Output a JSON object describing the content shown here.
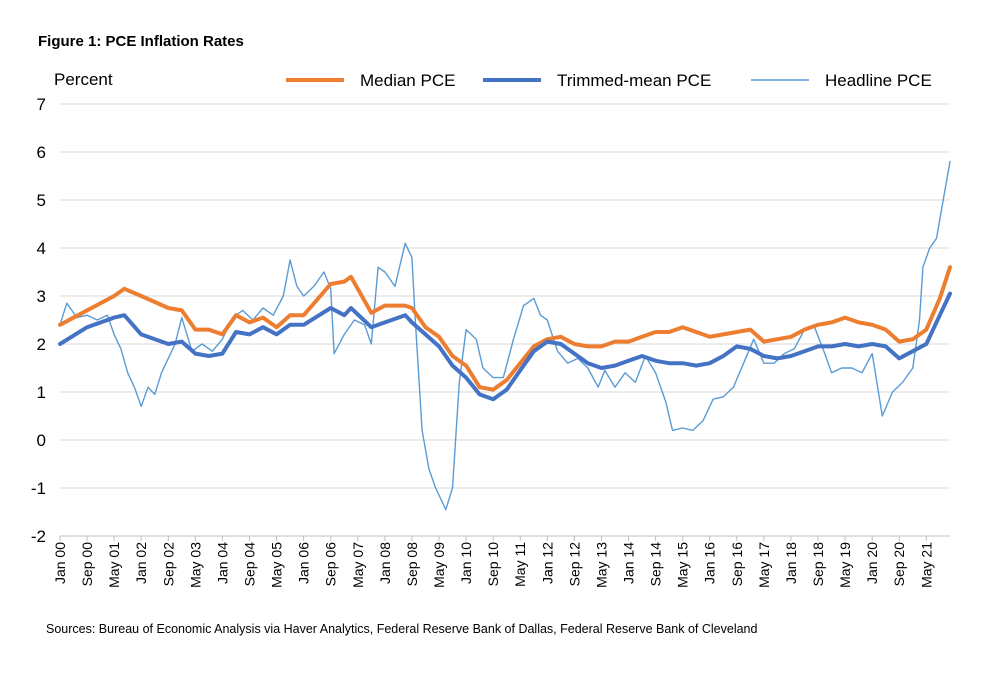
{
  "figure": {
    "title": "Figure 1: PCE Inflation Rates",
    "sources": "Sources: Bureau of Economic Analysis via Haver Analytics, Federal Reserve Bank of Dallas, Federal Reserve Bank of Cleveland"
  },
  "chart_data": {
    "type": "line",
    "title": "Figure 1: PCE Inflation Rates",
    "ylabel": "Percent",
    "xlabel": "",
    "ylim": [
      -2,
      7
    ],
    "yticks": [
      -2,
      -1,
      0,
      1,
      2,
      3,
      4,
      5,
      6,
      7
    ],
    "grid": "horizontal",
    "legend": "top",
    "x_start": "Jan 00",
    "x_end": "Dec 21",
    "xticks": [
      "Jan 00",
      "Sep 00",
      "May 01",
      "Jan 02",
      "Sep 02",
      "May 03",
      "Jan 04",
      "Sep 04",
      "May 05",
      "Jan 06",
      "Sep 06",
      "May 07",
      "Jan 08",
      "Sep 08",
      "May 09",
      "Jan 10",
      "Sep 10",
      "May 11",
      "Jan 12",
      "Sep 12",
      "May 13",
      "Jan 14",
      "Sep 14",
      "May 15",
      "Jan 16",
      "Sep 16",
      "May 17",
      "Jan 18",
      "Sep 18",
      "May 19",
      "Jan 20",
      "Sep 20",
      "May 21"
    ],
    "series": [
      {
        "name": "Median PCE",
        "color": "#ED7D31",
        "points": [
          [
            "Jan 00",
            2.4
          ],
          [
            "Sep 00",
            2.7
          ],
          [
            "May 01",
            3.0
          ],
          [
            "Aug 01",
            3.15
          ],
          [
            "Jan 02",
            3.0
          ],
          [
            "Sep 02",
            2.75
          ],
          [
            "Jan 03",
            2.7
          ],
          [
            "May 03",
            2.3
          ],
          [
            "Sep 03",
            2.3
          ],
          [
            "Jan 04",
            2.2
          ],
          [
            "May 04",
            2.6
          ],
          [
            "Sep 04",
            2.45
          ],
          [
            "Jan 05",
            2.55
          ],
          [
            "May 05",
            2.35
          ],
          [
            "Sep 05",
            2.6
          ],
          [
            "Jan 06",
            2.6
          ],
          [
            "Sep 06",
            3.25
          ],
          [
            "Jan 07",
            3.3
          ],
          [
            "Mar 07",
            3.4
          ],
          [
            "Sep 07",
            2.65
          ],
          [
            "Jan 08",
            2.8
          ],
          [
            "Jul 08",
            2.8
          ],
          [
            "Sep 08",
            2.75
          ],
          [
            "Jan 09",
            2.35
          ],
          [
            "May 09",
            2.15
          ],
          [
            "Sep 09",
            1.75
          ],
          [
            "Jan 10",
            1.55
          ],
          [
            "May 10",
            1.1
          ],
          [
            "Sep 10",
            1.05
          ],
          [
            "Jan 11",
            1.25
          ],
          [
            "May 11",
            1.6
          ],
          [
            "Sep 11",
            1.95
          ],
          [
            "Jan 12",
            2.1
          ],
          [
            "May 12",
            2.15
          ],
          [
            "Sep 12",
            2.0
          ],
          [
            "Jan 13",
            1.95
          ],
          [
            "May 13",
            1.95
          ],
          [
            "Sep 13",
            2.05
          ],
          [
            "Jan 14",
            2.05
          ],
          [
            "May 14",
            2.15
          ],
          [
            "Sep 14",
            2.25
          ],
          [
            "Jan 15",
            2.25
          ],
          [
            "May 15",
            2.35
          ],
          [
            "Sep 15",
            2.25
          ],
          [
            "Jan 16",
            2.15
          ],
          [
            "May 16",
            2.2
          ],
          [
            "Sep 16",
            2.25
          ],
          [
            "Jan 17",
            2.3
          ],
          [
            "May 17",
            2.05
          ],
          [
            "Sep 17",
            2.1
          ],
          [
            "Jan 18",
            2.15
          ],
          [
            "May 18",
            2.3
          ],
          [
            "Sep 18",
            2.4
          ],
          [
            "Jan 19",
            2.45
          ],
          [
            "May 19",
            2.55
          ],
          [
            "Sep 19",
            2.45
          ],
          [
            "Jan 20",
            2.4
          ],
          [
            "May 20",
            2.3
          ],
          [
            "Sep 20",
            2.05
          ],
          [
            "Jan 21",
            2.1
          ],
          [
            "May 21",
            2.3
          ],
          [
            "Sep 21",
            2.95
          ],
          [
            "Dec 21",
            3.6
          ]
        ]
      },
      {
        "name": "Trimmed-mean PCE",
        "color": "#4472C4",
        "points": [
          [
            "Jan 00",
            2.0
          ],
          [
            "Sep 00",
            2.35
          ],
          [
            "May 01",
            2.55
          ],
          [
            "Aug 01",
            2.6
          ],
          [
            "Jan 02",
            2.2
          ],
          [
            "Sep 02",
            2.0
          ],
          [
            "Jan 03",
            2.05
          ],
          [
            "May 03",
            1.8
          ],
          [
            "Sep 03",
            1.75
          ],
          [
            "Jan 04",
            1.8
          ],
          [
            "May 04",
            2.25
          ],
          [
            "Sep 04",
            2.2
          ],
          [
            "Jan 05",
            2.35
          ],
          [
            "May 05",
            2.2
          ],
          [
            "Sep 05",
            2.4
          ],
          [
            "Jan 06",
            2.4
          ],
          [
            "Sep 06",
            2.75
          ],
          [
            "Jan 07",
            2.6
          ],
          [
            "Mar 07",
            2.75
          ],
          [
            "Sep 07",
            2.35
          ],
          [
            "Jan 08",
            2.45
          ],
          [
            "Jul 08",
            2.6
          ],
          [
            "Sep 08",
            2.45
          ],
          [
            "Jan 09",
            2.2
          ],
          [
            "May 09",
            1.95
          ],
          [
            "Sep 09",
            1.55
          ],
          [
            "Jan 10",
            1.3
          ],
          [
            "May 10",
            0.95
          ],
          [
            "Sep 10",
            0.85
          ],
          [
            "Jan 11",
            1.05
          ],
          [
            "May 11",
            1.45
          ],
          [
            "Sep 11",
            1.85
          ],
          [
            "Jan 12",
            2.05
          ],
          [
            "May 12",
            2.0
          ],
          [
            "Sep 12",
            1.8
          ],
          [
            "Jan 13",
            1.6
          ],
          [
            "May 13",
            1.5
          ],
          [
            "Sep 13",
            1.55
          ],
          [
            "Jan 14",
            1.65
          ],
          [
            "May 14",
            1.75
          ],
          [
            "Sep 14",
            1.65
          ],
          [
            "Jan 15",
            1.6
          ],
          [
            "May 15",
            1.6
          ],
          [
            "Sep 15",
            1.55
          ],
          [
            "Jan 16",
            1.6
          ],
          [
            "May 16",
            1.75
          ],
          [
            "Sep 16",
            1.95
          ],
          [
            "Jan 17",
            1.9
          ],
          [
            "May 17",
            1.75
          ],
          [
            "Sep 17",
            1.7
          ],
          [
            "Jan 18",
            1.75
          ],
          [
            "May 18",
            1.85
          ],
          [
            "Sep 18",
            1.95
          ],
          [
            "Jan 19",
            1.95
          ],
          [
            "May 19",
            2.0
          ],
          [
            "Sep 19",
            1.95
          ],
          [
            "Jan 20",
            2.0
          ],
          [
            "May 20",
            1.95
          ],
          [
            "Sep 20",
            1.7
          ],
          [
            "Jan 21",
            1.85
          ],
          [
            "May 21",
            2.0
          ],
          [
            "Sep 21",
            2.6
          ],
          [
            "Dec 21",
            3.05
          ]
        ]
      },
      {
        "name": "Headline PCE",
        "color": "#5B9BD5",
        "points": [
          [
            "Jan 00",
            2.4
          ],
          [
            "Mar 00",
            2.85
          ],
          [
            "Jun 00",
            2.55
          ],
          [
            "Sep 00",
            2.6
          ],
          [
            "Dec 00",
            2.5
          ],
          [
            "Mar 01",
            2.6
          ],
          [
            "May 01",
            2.2
          ],
          [
            "Jul 01",
            1.9
          ],
          [
            "Sep 01",
            1.4
          ],
          [
            "Nov 01",
            1.1
          ],
          [
            "Jan 02",
            0.7
          ],
          [
            "Mar 02",
            1.1
          ],
          [
            "May 02",
            0.95
          ],
          [
            "Jul 02",
            1.4
          ],
          [
            "Sep 02",
            1.7
          ],
          [
            "Nov 02",
            2.0
          ],
          [
            "Jan 03",
            2.55
          ],
          [
            "Apr 03",
            1.85
          ],
          [
            "Jul 03",
            2.0
          ],
          [
            "Oct 03",
            1.85
          ],
          [
            "Jan 04",
            2.1
          ],
          [
            "Apr 04",
            2.55
          ],
          [
            "Jul 04",
            2.7
          ],
          [
            "Oct 04",
            2.5
          ],
          [
            "Jan 05",
            2.75
          ],
          [
            "Apr 05",
            2.6
          ],
          [
            "Jul 05",
            3.0
          ],
          [
            "Sep 05",
            3.75
          ],
          [
            "Nov 05",
            3.2
          ],
          [
            "Jan 06",
            3.0
          ],
          [
            "Apr 06",
            3.2
          ],
          [
            "Jul 06",
            3.5
          ],
          [
            "Sep 06",
            3.15
          ],
          [
            "Oct 06",
            1.8
          ],
          [
            "Jan 07",
            2.2
          ],
          [
            "Apr 07",
            2.5
          ],
          [
            "Jul 07",
            2.4
          ],
          [
            "Sep 07",
            2.0
          ],
          [
            "Nov 07",
            3.6
          ],
          [
            "Jan 08",
            3.5
          ],
          [
            "Apr 08",
            3.2
          ],
          [
            "Jul 08",
            4.1
          ],
          [
            "Sep 08",
            3.8
          ],
          [
            "Oct 08",
            2.5
          ],
          [
            "Dec 08",
            0.2
          ],
          [
            "Feb 09",
            -0.6
          ],
          [
            "Apr 09",
            -1.0
          ],
          [
            "Jul 09",
            -1.45
          ],
          [
            "Sep 09",
            -1.0
          ],
          [
            "Nov 09",
            1.2
          ],
          [
            "Jan 10",
            2.3
          ],
          [
            "Apr 10",
            2.1
          ],
          [
            "Jun 10",
            1.5
          ],
          [
            "Sep 10",
            1.3
          ],
          [
            "Dec 10",
            1.3
          ],
          [
            "Mar 11",
            2.1
          ],
          [
            "Jun 11",
            2.8
          ],
          [
            "Sep 11",
            2.95
          ],
          [
            "Nov 11",
            2.6
          ],
          [
            "Jan 12",
            2.5
          ],
          [
            "Apr 12",
            1.85
          ],
          [
            "Jul 12",
            1.6
          ],
          [
            "Oct 12",
            1.7
          ],
          [
            "Jan 13",
            1.5
          ],
          [
            "Apr 13",
            1.1
          ],
          [
            "Jun 13",
            1.45
          ],
          [
            "Sep 13",
            1.1
          ],
          [
            "Dec 13",
            1.4
          ],
          [
            "Mar 14",
            1.2
          ],
          [
            "Jun 14",
            1.75
          ],
          [
            "Sep 14",
            1.4
          ],
          [
            "Dec 14",
            0.8
          ],
          [
            "Feb 15",
            0.2
          ],
          [
            "May 15",
            0.25
          ],
          [
            "Aug 15",
            0.2
          ],
          [
            "Nov 15",
            0.4
          ],
          [
            "Feb 16",
            0.85
          ],
          [
            "May 16",
            0.9
          ],
          [
            "Aug 16",
            1.1
          ],
          [
            "Nov 16",
            1.6
          ],
          [
            "Feb 17",
            2.1
          ],
          [
            "May 17",
            1.6
          ],
          [
            "Aug 17",
            1.6
          ],
          [
            "Nov 17",
            1.8
          ],
          [
            "Feb 18",
            1.9
          ],
          [
            "May 18",
            2.3
          ],
          [
            "Aug 18",
            2.35
          ],
          [
            "Nov 18",
            1.8
          ],
          [
            "Jan 19",
            1.4
          ],
          [
            "Apr 19",
            1.5
          ],
          [
            "Jul 19",
            1.5
          ],
          [
            "Oct 19",
            1.4
          ],
          [
            "Jan 20",
            1.8
          ],
          [
            "Apr 20",
            0.5
          ],
          [
            "Jul 20",
            1.0
          ],
          [
            "Oct 20",
            1.2
          ],
          [
            "Jan 21",
            1.5
          ],
          [
            "Mar 21",
            2.5
          ],
          [
            "Apr 21",
            3.6
          ],
          [
            "Jun 21",
            4.0
          ],
          [
            "Aug 21",
            4.2
          ],
          [
            "Oct 21",
            5.0
          ],
          [
            "Dec 21",
            5.8
          ]
        ]
      }
    ]
  }
}
